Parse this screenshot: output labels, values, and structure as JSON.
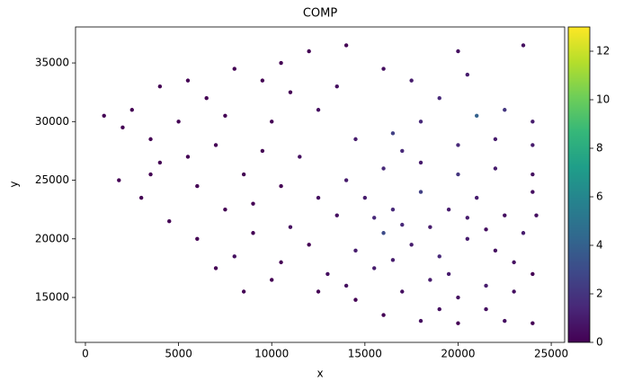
{
  "chart_data": {
    "type": "scatter",
    "title": "COMP",
    "xlabel": "x",
    "ylabel": "y",
    "x": [
      14000,
      15500,
      17000,
      18500,
      20000,
      21500,
      23000,
      24000,
      14500,
      16000,
      17500,
      19000,
      20500,
      22000,
      23500,
      24200,
      13500,
      15000,
      16500,
      18000,
      19500,
      21000,
      22500,
      24000,
      14000,
      16000,
      18000,
      20000,
      22000,
      24000,
      13000,
      12000,
      11000,
      12500,
      10500,
      18500,
      20500,
      17000,
      23000,
      19500,
      16500,
      21500,
      15500,
      16000,
      18000,
      20000,
      22500,
      24000,
      21500,
      19000,
      14500,
      12500,
      10000,
      20000,
      20500,
      19000,
      21000,
      22500,
      24000,
      17500,
      16000,
      14000,
      12000,
      10500,
      18000,
      16500,
      14500,
      22000,
      20000,
      24000,
      23500,
      17000,
      12500,
      11000,
      9500,
      8000,
      13500,
      1000,
      2000,
      2500,
      3500,
      1800,
      3000,
      4000,
      5000,
      5500,
      6500,
      7000,
      6000,
      4500,
      6000,
      7500,
      8000,
      9000,
      8500,
      9500,
      10000,
      7500,
      4000,
      3500,
      5500,
      9000,
      10500,
      7000,
      11500,
      8500
    ],
    "y": [
      16000,
      17500,
      15500,
      16500,
      15000,
      16000,
      15500,
      17000,
      19000,
      20500,
      19500,
      18500,
      20000,
      19000,
      20500,
      22000,
      22000,
      23500,
      22500,
      24000,
      22500,
      23500,
      22000,
      24000,
      25000,
      26000,
      26500,
      25500,
      26000,
      25500,
      17000,
      19500,
      21000,
      23500,
      24500,
      21000,
      21800,
      21200,
      18000,
      17000,
      18200,
      20800,
      21800,
      13500,
      13000,
      12800,
      13000,
      12800,
      14000,
      14000,
      14800,
      15500,
      16500,
      36000,
      34000,
      32000,
      30500,
      31000,
      30000,
      33500,
      34500,
      36500,
      36000,
      35000,
      30000,
      29000,
      28500,
      28500,
      28000,
      28000,
      36500,
      27500,
      31000,
      32500,
      33500,
      34500,
      33000,
      30500,
      29500,
      31000,
      28500,
      25000,
      23500,
      26500,
      30000,
      33500,
      32000,
      28000,
      24500,
      21500,
      20000,
      22500,
      18500,
      20500,
      25500,
      27500,
      30000,
      30500,
      33000,
      25500,
      27000,
      23000,
      18000,
      17500,
      27000,
      15500
    ],
    "values": [
      0.5,
      1,
      0.5,
      1,
      0.5,
      1,
      0.5,
      0,
      1,
      3,
      1,
      1.5,
      1,
      0.5,
      1,
      0.5,
      0.5,
      1,
      1.5,
      2.5,
      1,
      1,
      0.5,
      0.5,
      1,
      1.5,
      1,
      2,
      1,
      0.5,
      0.5,
      0,
      0.5,
      0.5,
      0,
      1,
      1,
      1.5,
      0.5,
      1,
      1,
      0.5,
      1.5,
      0,
      0.5,
      0,
      0.5,
      0,
      0.5,
      0.5,
      0,
      0,
      0,
      0.5,
      1,
      1.5,
      4,
      2,
      1,
      1,
      0.5,
      0,
      0,
      0,
      1.5,
      2.5,
      1,
      1,
      1.5,
      1,
      0.5,
      1.5,
      0.5,
      0,
      0,
      0,
      0.5,
      0,
      0,
      0,
      0,
      0,
      0,
      0,
      0,
      0,
      0,
      0,
      0,
      0,
      0,
      0,
      0.5,
      0,
      0,
      0,
      0,
      0,
      0,
      0,
      0,
      0,
      0,
      0,
      0.5,
      0
    ],
    "xlim": [
      -530,
      25720
    ],
    "ylim": [
      11170,
      38070
    ],
    "xticks": [
      0,
      5000,
      10000,
      15000,
      20000,
      25000
    ],
    "yticks": [
      15000,
      20000,
      25000,
      30000,
      35000
    ],
    "colorbar": {
      "colormap": "viridis",
      "lim": [
        0,
        13
      ],
      "ticks": [
        0,
        2,
        4,
        6,
        8,
        10,
        12
      ]
    }
  }
}
